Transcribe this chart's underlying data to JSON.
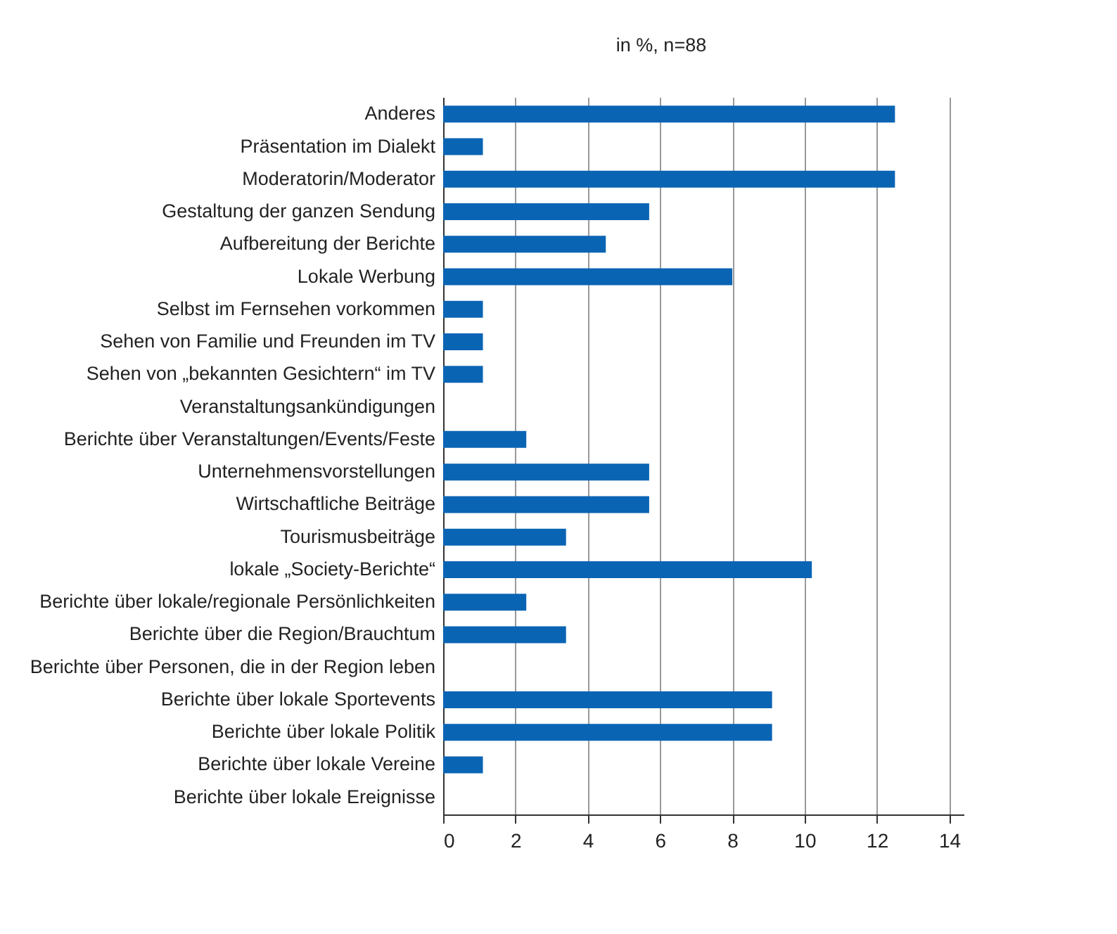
{
  "chart_data": {
    "type": "bar",
    "orientation": "horizontal",
    "title": "in %, n=88",
    "categories": [
      "Anderes",
      "Präsentation im Dialekt",
      "Moderatorin/Moderator",
      "Gestaltung der ganzen Sendung",
      "Aufbereitung der Berichte",
      "Lokale Werbung",
      "Selbst im Fernsehen vorkommen",
      "Sehen von Familie und Freunden im TV",
      "Sehen von „bekannten Gesichtern“ im TV",
      "Veranstaltungsankündigungen",
      "Berichte über Veranstaltungen/Events/Feste",
      "Unternehmensvorstellungen",
      "Wirtschaftliche Beiträge",
      "Tourismusbeiträge",
      "lokale „Society-Berichte“",
      "Berichte über lokale/regionale Persönlichkeiten",
      "Berichte über die Region/Brauchtum",
      "Berichte über Personen, die in der Region leben",
      "Berichte über lokale Sportevents",
      "Berichte über lokale Politik",
      "Berichte über lokale Vereine",
      "Berichte über lokale Ereignisse"
    ],
    "values": [
      12.5,
      1.1,
      12.5,
      5.7,
      4.5,
      8.0,
      1.1,
      1.1,
      1.1,
      0,
      2.3,
      5.7,
      5.7,
      3.4,
      10.2,
      2.3,
      3.4,
      0,
      9.1,
      9.1,
      1.1,
      0
    ],
    "color": "#0a64b4",
    "xlim": [
      0,
      14.4
    ],
    "xticks": [
      0,
      2,
      4,
      6,
      8,
      10,
      12,
      14
    ],
    "grid": "x"
  }
}
